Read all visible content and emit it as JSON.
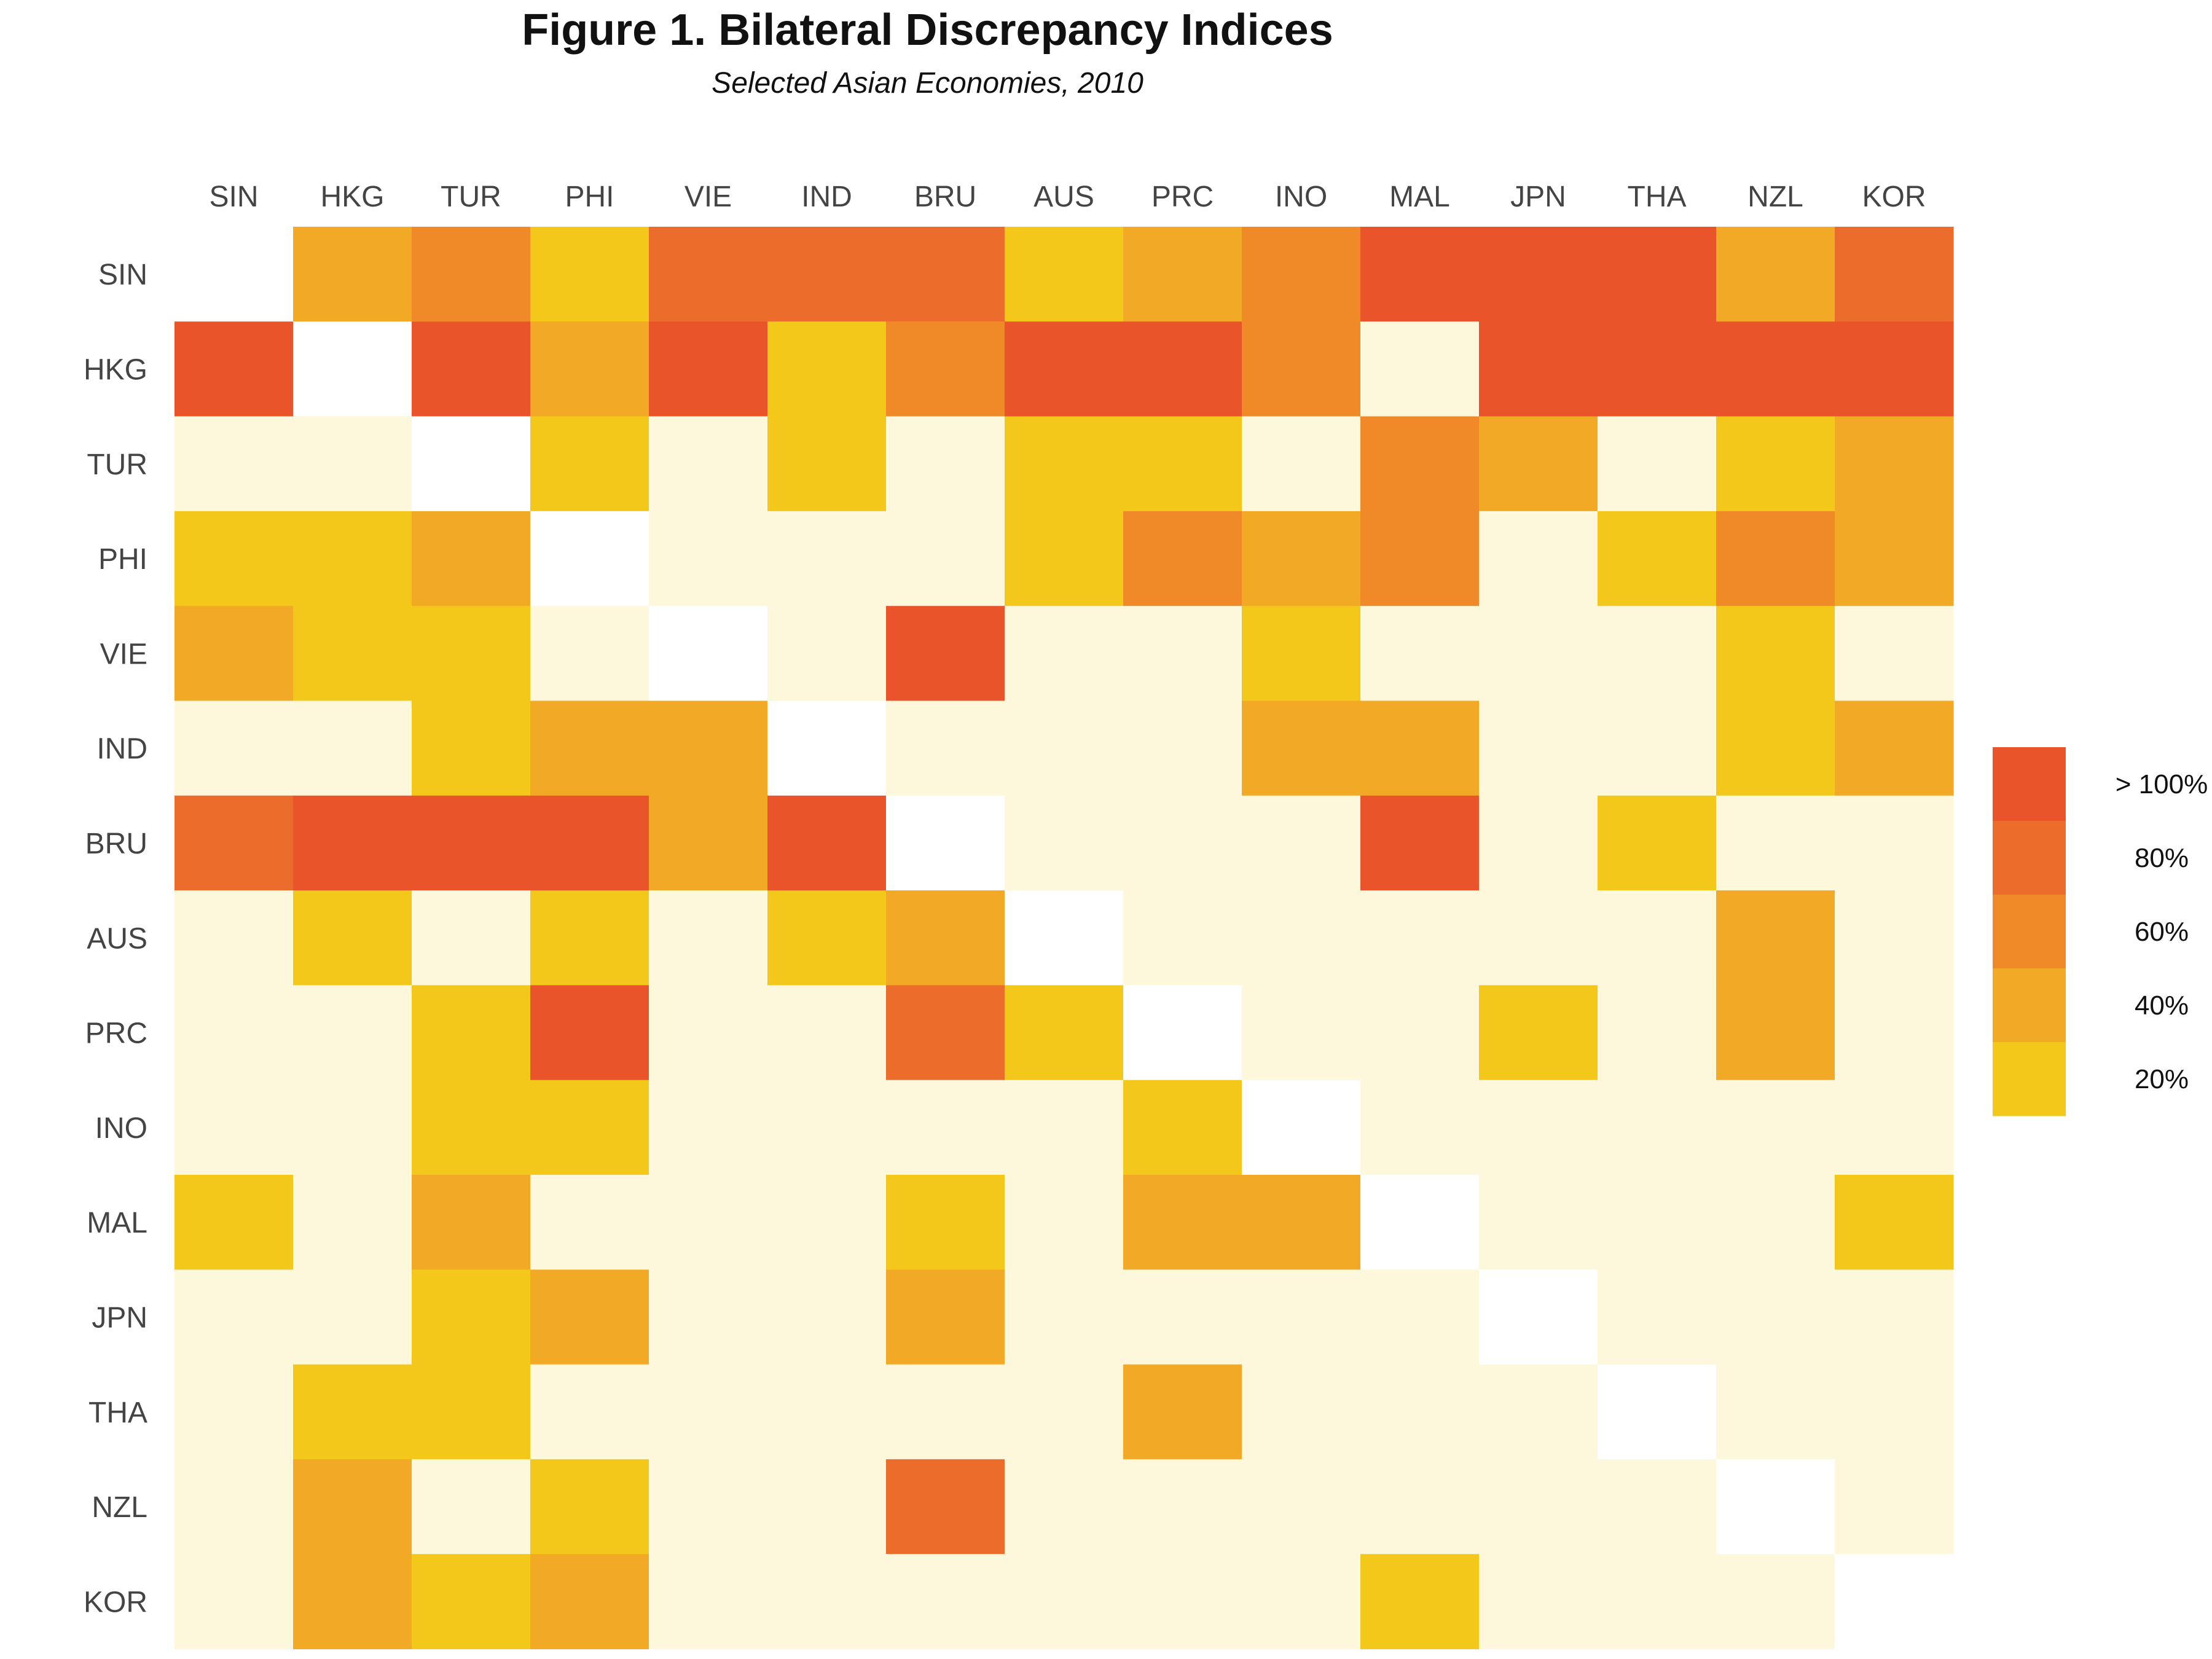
{
  "chart_data": {
    "type": "heatmap",
    "title": "Figure 1. Bilateral Discrepancy Indices",
    "subtitle": "Selected Asian Economies, 2010",
    "xlabel": "",
    "ylabel": "",
    "x_categories": [
      "SIN",
      "HKG",
      "TUR",
      "PHI",
      "VIE",
      "IND",
      "BRU",
      "AUS",
      "PRC",
      "INO",
      "MAL",
      "JPN",
      "THA",
      "NZL",
      "KOR"
    ],
    "y_categories": [
      "SIN",
      "HKG",
      "TUR",
      "PHI",
      "VIE",
      "IND",
      "BRU",
      "AUS",
      "PRC",
      "INO",
      "MAL",
      "JPN",
      "THA",
      "NZL",
      "KOR"
    ],
    "values": [
      [
        null,
        40,
        60,
        30,
        75,
        78,
        90,
        20,
        45,
        65,
        120,
        120,
        120,
        45,
        80
      ],
      [
        120,
        null,
        120,
        40,
        120,
        20,
        60,
        120,
        120,
        55,
        0,
        120,
        120,
        120,
        120
      ],
      [
        0,
        0,
        null,
        10,
        0,
        20,
        0,
        25,
        25,
        0,
        60,
        35,
        0,
        20,
        40
      ],
      [
        10,
        20,
        45,
        null,
        0,
        0,
        0,
        20,
        65,
        35,
        60,
        0,
        20,
        70,
        35
      ],
      [
        35,
        20,
        30,
        0,
        null,
        0,
        110,
        0,
        0,
        20,
        0,
        0,
        0,
        20,
        0
      ],
      [
        0,
        0,
        30,
        40,
        40,
        null,
        0,
        0,
        0,
        40,
        45,
        0,
        0,
        25,
        35
      ],
      [
        80,
        120,
        120,
        120,
        35,
        120,
        null,
        0,
        0,
        0,
        120,
        0,
        15,
        0,
        0
      ],
      [
        0,
        20,
        0,
        20,
        0,
        20,
        40,
        null,
        0,
        0,
        0,
        0,
        0,
        35,
        0
      ],
      [
        0,
        0,
        30,
        120,
        0,
        0,
        80,
        30,
        null,
        0,
        0,
        10,
        0,
        45,
        0
      ],
      [
        0,
        0,
        25,
        25,
        0,
        0,
        0,
        0,
        20,
        null,
        0,
        0,
        0,
        0,
        0
      ],
      [
        30,
        0,
        45,
        0,
        0,
        0,
        20,
        0,
        50,
        35,
        null,
        0,
        0,
        0,
        15
      ],
      [
        0,
        0,
        20,
        50,
        0,
        0,
        40,
        0,
        0,
        0,
        0,
        null,
        0,
        0,
        0
      ],
      [
        0,
        20,
        20,
        0,
        0,
        0,
        0,
        0,
        40,
        0,
        0,
        0,
        null,
        0,
        0
      ],
      [
        0,
        40,
        0,
        20,
        0,
        0,
        80,
        0,
        0,
        0,
        0,
        0,
        0,
        null,
        0
      ],
      [
        0,
        40,
        20,
        40,
        0,
        0,
        0,
        0,
        0,
        0,
        30,
        0,
        0,
        0,
        null
      ]
    ],
    "missing_value_color": "#ffffff",
    "scale": {
      "labels": [
        "> 100%",
        "80%",
        "60%",
        "40%",
        "20%"
      ],
      "colors": [
        "#e9542b",
        "#ec6d2b",
        "#f08a28",
        "#f2a925",
        "#f3c81b"
      ],
      "low_color": "#fdf8dc",
      "max": 100
    },
    "legend_position": "right",
    "grid": false
  }
}
